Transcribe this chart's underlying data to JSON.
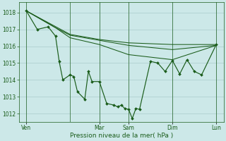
{
  "bg_color": "#cce8e8",
  "grid_color": "#aacccc",
  "line_color": "#1a5c1a",
  "marker_color": "#1a5c1a",
  "xlabel": "Pression niveau de la mer( hPa )",
  "ylim": [
    1011.5,
    1018.6
  ],
  "yticks": [
    1012,
    1013,
    1014,
    1015,
    1016,
    1017,
    1018
  ],
  "xlim": [
    0,
    28
  ],
  "day_positions": [
    1,
    7,
    11,
    15,
    21,
    27
  ],
  "day_labels": [
    "Ven",
    "Mar",
    "Sam",
    "Dim",
    "Lun"
  ],
  "day_tick_x": [
    1,
    11,
    15,
    21,
    27
  ],
  "series_smooth1": {
    "x": [
      1,
      7,
      11,
      15,
      21,
      27
    ],
    "y": [
      1018.1,
      1016.7,
      1016.4,
      1016.2,
      1016.1,
      1016.1
    ]
  },
  "series_smooth2": {
    "x": [
      1,
      5,
      7,
      11,
      15,
      21,
      27
    ],
    "y": [
      1018.1,
      1017.1,
      1016.65,
      1016.35,
      1016.05,
      1015.8,
      1016.05
    ]
  },
  "series_smooth3": {
    "x": [
      1,
      5,
      7,
      11,
      15,
      21,
      27
    ],
    "y": [
      1018.1,
      1017.1,
      1016.5,
      1016.1,
      1015.5,
      1015.2,
      1016.05
    ]
  },
  "series_main": {
    "x": [
      1,
      2.5,
      4,
      5,
      5.5,
      6,
      7,
      7.5,
      8,
      9,
      9.5,
      10,
      11,
      12,
      13,
      13.5,
      14,
      14.5,
      15,
      15.5,
      16,
      16.5,
      18,
      19,
      20,
      21,
      22,
      23,
      24,
      25,
      27
    ],
    "y": [
      1018.1,
      1017.0,
      1017.15,
      1016.6,
      1015.1,
      1014.0,
      1014.3,
      1014.2,
      1013.3,
      1012.85,
      1014.5,
      1013.9,
      1013.9,
      1012.6,
      1012.5,
      1012.4,
      1012.5,
      1012.3,
      1012.25,
      1011.7,
      1012.3,
      1012.25,
      1015.1,
      1015.0,
      1014.5,
      1015.15,
      1014.35,
      1015.2,
      1014.5,
      1014.3,
      1016.1
    ]
  }
}
